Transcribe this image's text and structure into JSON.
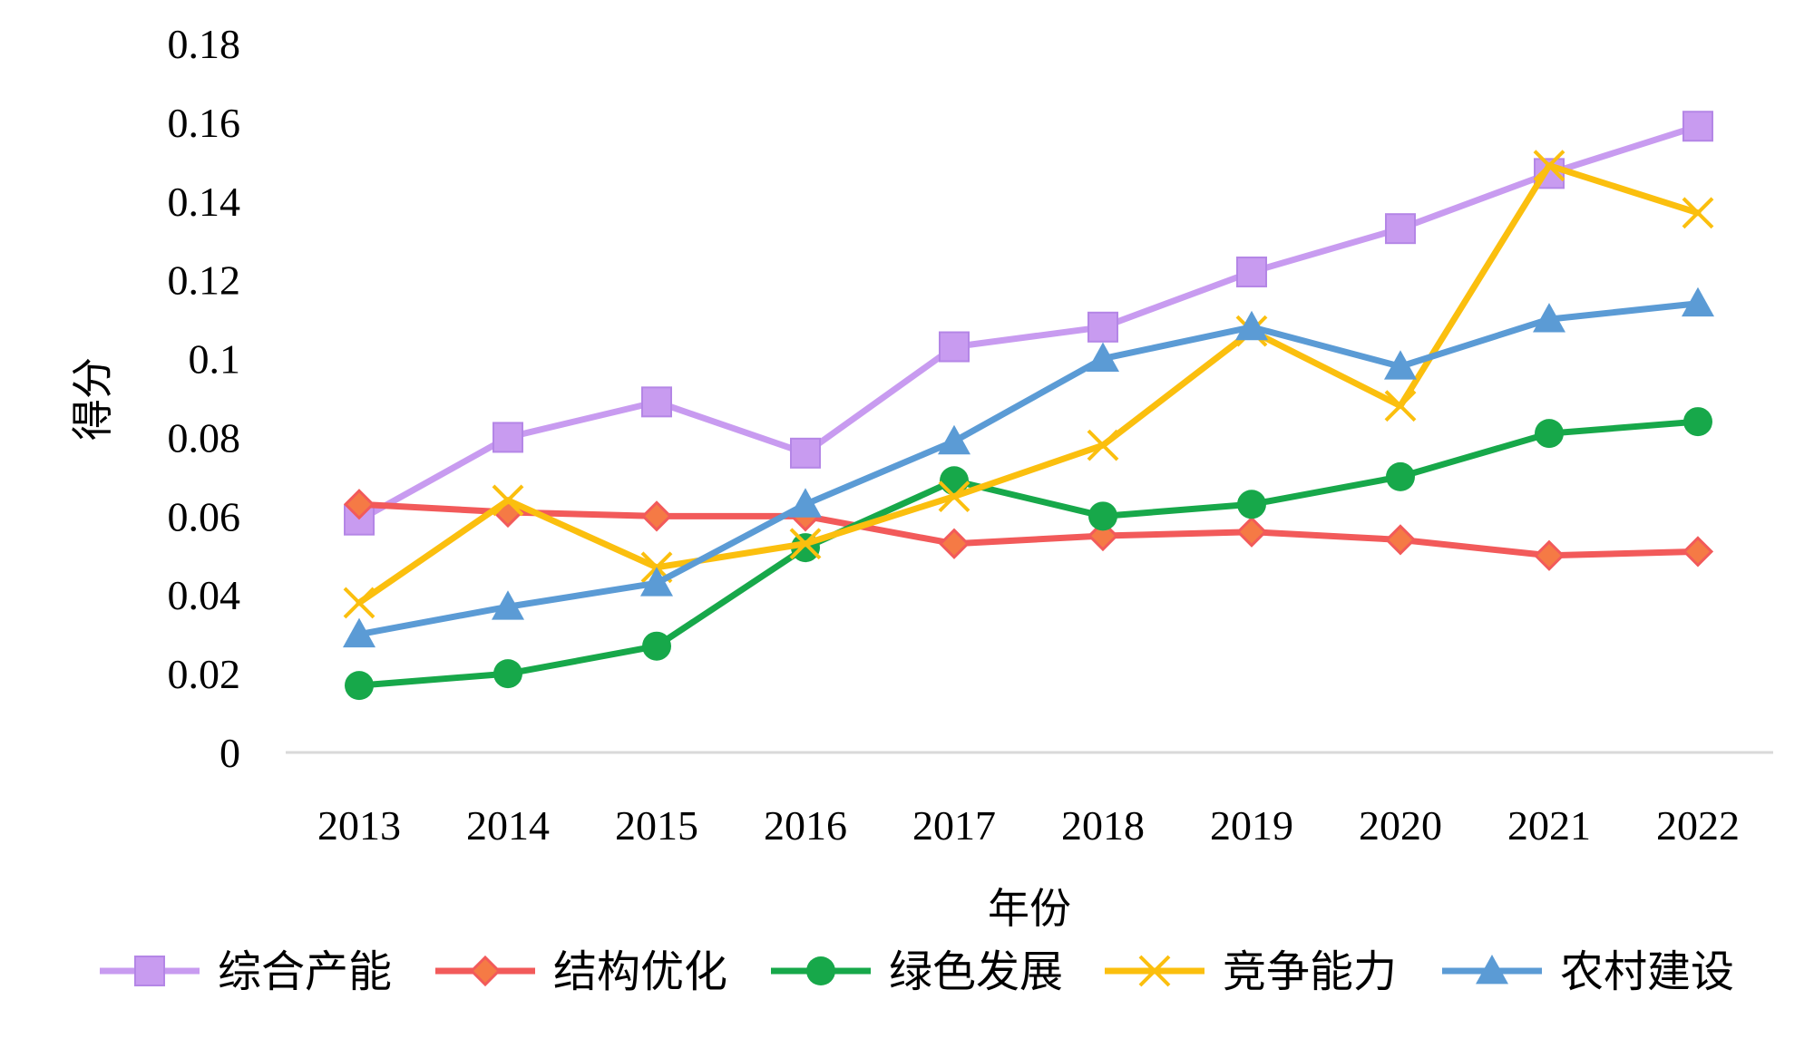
{
  "chart_data": {
    "type": "line",
    "title": "",
    "xlabel": "年份",
    "ylabel": "得分",
    "categories": [
      "2013",
      "2014",
      "2015",
      "2016",
      "2017",
      "2018",
      "2019",
      "2020",
      "2021",
      "2022"
    ],
    "ylim": [
      0,
      0.18
    ],
    "yticks": [
      "0",
      "0.02",
      "0.04",
      "0.06",
      "0.08",
      "0.1",
      "0.12",
      "0.14",
      "0.16",
      "0.18"
    ],
    "grid": false,
    "legend_position": "bottom",
    "series": [
      {
        "name": "综合产能",
        "color": "#c89bf0",
        "marker": "square",
        "values": [
          0.059,
          0.08,
          0.089,
          0.076,
          0.103,
          0.108,
          0.122,
          0.133,
          0.147,
          0.159
        ]
      },
      {
        "name": "结构优化",
        "color": "#f25a5a",
        "marker": "diamond",
        "values": [
          0.063,
          0.061,
          0.06,
          0.06,
          0.053,
          0.055,
          0.056,
          0.054,
          0.05,
          0.051
        ]
      },
      {
        "name": "绿色发展",
        "color": "#17a84a",
        "marker": "circle",
        "values": [
          0.017,
          0.02,
          0.027,
          0.052,
          0.069,
          0.06,
          0.063,
          0.07,
          0.081,
          0.084
        ]
      },
      {
        "name": "竞争能力",
        "color": "#fbbf0e",
        "marker": "x",
        "values": [
          0.038,
          0.064,
          0.047,
          0.053,
          0.065,
          0.078,
          0.107,
          0.088,
          0.149,
          0.137
        ]
      },
      {
        "name": "农村建设",
        "color": "#5b9bd5",
        "marker": "triangle",
        "values": [
          0.03,
          0.037,
          0.043,
          0.063,
          0.079,
          0.1,
          0.108,
          0.098,
          0.11,
          0.114
        ]
      }
    ]
  }
}
